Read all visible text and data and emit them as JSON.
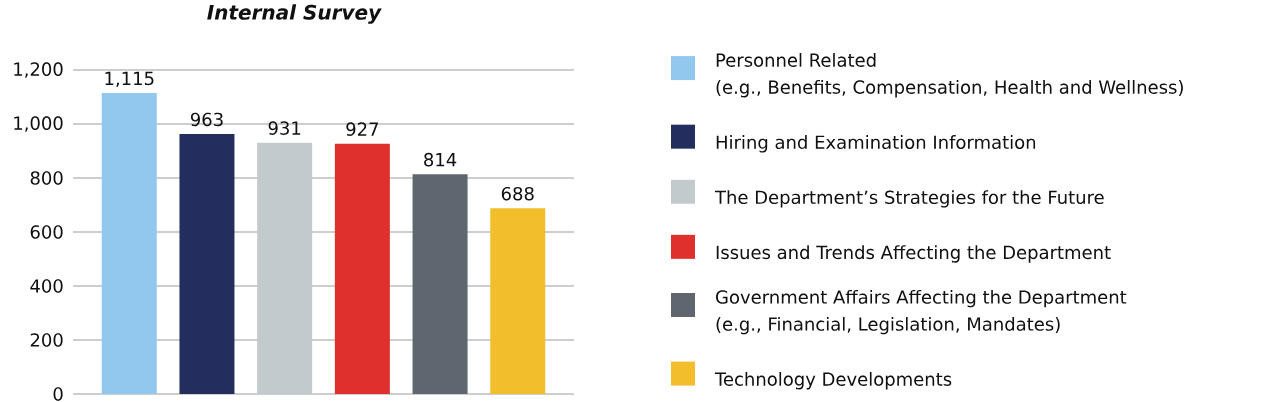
{
  "chart_data": {
    "type": "bar",
    "title": "Internal Survey",
    "categories": [
      null
    ],
    "series": [
      {
        "name": "Personnel Related (e.g., Benefits, Compensation, Health and Wellness)",
        "color": "#92c8ee",
        "values": [
          1115
        ],
        "value_labels": [
          "1,115"
        ]
      },
      {
        "name": "Hiring and Examination Information",
        "color": "#232d5e",
        "values": [
          963
        ],
        "value_labels": [
          "963"
        ]
      },
      {
        "name": "The Department’s Strategies for the Future",
        "color": "#c3cace",
        "values": [
          931
        ],
        "value_labels": [
          "931"
        ]
      },
      {
        "name": "Issues and Trends Affecting the Department",
        "color": "#e0302e",
        "values": [
          927
        ],
        "value_labels": [
          "927"
        ]
      },
      {
        "name": "Government Affairs Affecting the Department (e.g., Financial, Legislation, Mandates)",
        "color": "#5f6670",
        "values": [
          814
        ],
        "value_labels": [
          "814"
        ]
      },
      {
        "name": "Technology Developments",
        "color": "#f2be2c",
        "values": [
          688
        ],
        "value_labels": [
          "688"
        ]
      }
    ],
    "ylim": [
      0,
      1200
    ],
    "yticks": [
      0,
      200,
      400,
      600,
      800,
      {
        "value": 1000,
        "label": "1,000"
      },
      {
        "value": 1200,
        "label": "1,200"
      }
    ],
    "grid": "y",
    "legend": "right"
  }
}
